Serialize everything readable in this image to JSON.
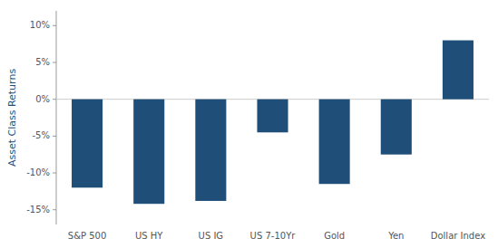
{
  "chart_data": {
    "type": "bar",
    "ylabel": "Asset Class Returns",
    "categories": [
      "S&P 500",
      "US HY",
      "US IG",
      "US 7-10Yr",
      "Gold",
      "Yen",
      "Dollar Index"
    ],
    "values": [
      -12.0,
      -14.2,
      -13.8,
      -4.5,
      -11.5,
      -7.5,
      8.0
    ],
    "color": "#1f4e79",
    "ylim": [
      -17,
      12
    ],
    "yticks": [
      {
        "value": -15,
        "label": "-15%"
      },
      {
        "value": -10,
        "label": "-10%"
      },
      {
        "value": -5,
        "label": "-5%"
      },
      {
        "value": 0,
        "label": "0%"
      },
      {
        "value": 5,
        "label": "5%"
      },
      {
        "value": 10,
        "label": "10%"
      }
    ],
    "grid": false
  }
}
